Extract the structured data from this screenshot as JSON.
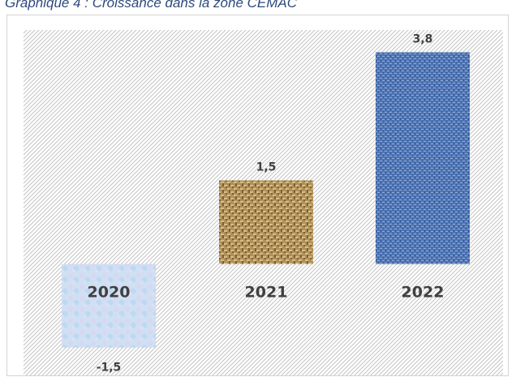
{
  "page": {
    "title": "Graphique 4 : Croissance dans la zone CEMAC"
  },
  "chart_data": {
    "type": "bar",
    "title": "",
    "xlabel": "",
    "ylabel": "",
    "categories": [
      "2020",
      "2021",
      "2022"
    ],
    "values": [
      -1.5,
      1.5,
      3.8
    ],
    "value_labels": [
      "-1,5",
      "1,5",
      "3,8"
    ],
    "ylim": [
      -2.0,
      4.2
    ],
    "grid": false,
    "legend": "none",
    "colors": {
      "2020": "#cfe0f3",
      "2021": "#b0915a",
      "2022": "#4f75b4",
      "plot_pattern": "#c2c2c2",
      "text": "#404040"
    }
  }
}
